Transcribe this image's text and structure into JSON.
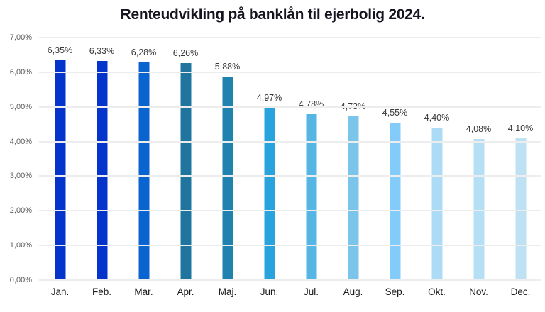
{
  "chart_data": {
    "type": "bar",
    "title": "Renteudvikling på banklån til ejerbolig 2024.",
    "categories": [
      "Jan.",
      "Feb.",
      "Mar.",
      "Apr.",
      "Maj.",
      "Jun.",
      "Jul.",
      "Aug.",
      "Sep.",
      "Okt.",
      "Nov.",
      "Dec."
    ],
    "values": [
      6.35,
      6.33,
      6.28,
      6.26,
      5.88,
      4.97,
      4.78,
      4.73,
      4.55,
      4.4,
      4.08,
      4.1
    ],
    "data_labels": [
      "6,35%",
      "6,33%",
      "6,28%",
      "6,26%",
      "5,88%",
      "4,97%",
      "4,78%",
      "4,73%",
      "4,55%",
      "4,40%",
      "4,08%",
      "4,10%"
    ],
    "bar_colors": [
      "#0434cb",
      "#0434cb",
      "#0a64d0",
      "#20759f",
      "#1f82af",
      "#29a3dd",
      "#55b6e4",
      "#7cc5ea",
      "#83cbf8",
      "#acdcf5",
      "#b5dff5",
      "#bee1f3"
    ],
    "y_ticks": [
      "7,00%",
      "6,00%",
      "5,00%",
      "4,00%",
      "3,00%",
      "2,00%",
      "1,00%",
      "0,00%"
    ],
    "ylim": [
      0,
      7
    ],
    "xlabel": "",
    "ylabel": "",
    "grid": true,
    "legend_position": "none"
  },
  "colors": {
    "background": "#ffffff",
    "title_text": "#15151f",
    "gridline": "#ededed",
    "axis_tick_text": "#595959",
    "data_label_text": "#383838",
    "category_text": "#1a1a1a"
  }
}
